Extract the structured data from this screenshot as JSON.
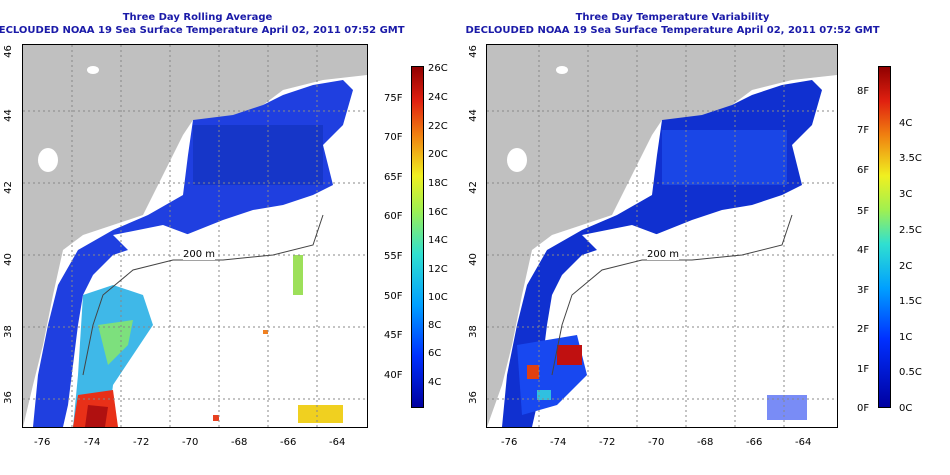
{
  "left_panel": {
    "title": "Three Day Rolling Average",
    "subtitle": "DECLOUDED NOAA 19 Sea Surface Temperature April 02, 2011 07:52 GMT",
    "contour_label": "200 m",
    "lon_ticks": [
      "-76",
      "-74",
      "-72",
      "-70",
      "-68",
      "-66",
      "-64"
    ],
    "lat_ticks": [
      "36",
      "38",
      "40",
      "42",
      "44",
      "46"
    ],
    "colorbar": {
      "fahrenheit": [
        "75F",
        "70F",
        "65F",
        "60F",
        "55F",
        "50F",
        "45F",
        "40F"
      ],
      "celsius": [
        "26C",
        "24C",
        "22C",
        "20C",
        "18C",
        "16C",
        "14C",
        "12C",
        "10C",
        "8C",
        "6C",
        "4C"
      ]
    }
  },
  "right_panel": {
    "title": "Three Day Temperature Variability",
    "subtitle": "DECLOUDED NOAA 19 Sea Surface Temperature April 02, 2011 07:52 GMT",
    "contour_label": "200 m",
    "lon_ticks": [
      "-76",
      "-74",
      "-72",
      "-70",
      "-68",
      "-66",
      "-64"
    ],
    "lat_ticks": [
      "36",
      "38",
      "40",
      "42",
      "44",
      "46"
    ],
    "colorbar": {
      "fahrenheit": [
        "8F",
        "7F",
        "6F",
        "5F",
        "4F",
        "3F",
        "2F",
        "1F",
        "0F"
      ],
      "celsius": [
        "4C",
        "3.5C",
        "3C",
        "2.5C",
        "2C",
        "1.5C",
        "1C",
        "0.5C",
        "0C"
      ]
    }
  },
  "colors": {
    "land": "#c0c0c0",
    "title": "#1a1aa8",
    "cold_water": "#1f3fe0",
    "deep_blue": "#1030b8"
  }
}
